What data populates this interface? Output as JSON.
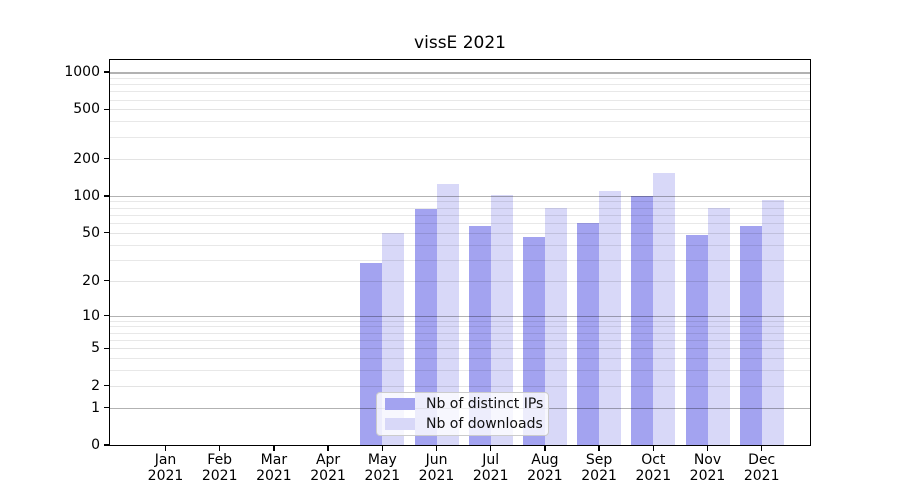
{
  "chart_data": {
    "type": "bar",
    "title": "vissE 2021",
    "categories": [
      "Jan 2021",
      "Feb 2021",
      "Mar 2021",
      "Apr 2021",
      "May 2021",
      "Jun 2021",
      "Jul 2021",
      "Aug 2021",
      "Sep 2021",
      "Oct 2021",
      "Nov 2021",
      "Dec 2021"
    ],
    "series": [
      {
        "name": "Nb of distinct IPs",
        "color": "#a3a3f0",
        "values": [
          0,
          0,
          0,
          0,
          28,
          78,
          57,
          46,
          60,
          100,
          48,
          57
        ]
      },
      {
        "name": "Nb of downloads",
        "color": "#d8d8f8",
        "values": [
          0,
          0,
          0,
          0,
          50,
          125,
          102,
          80,
          110,
          152,
          79,
          92
        ]
      }
    ],
    "yscale": "log1p",
    "yticks": [
      0,
      1,
      2,
      5,
      10,
      20,
      50,
      100,
      200,
      500,
      1000
    ],
    "ylim": [
      0,
      1250
    ],
    "grid": "on",
    "legend_position": "lower center"
  }
}
